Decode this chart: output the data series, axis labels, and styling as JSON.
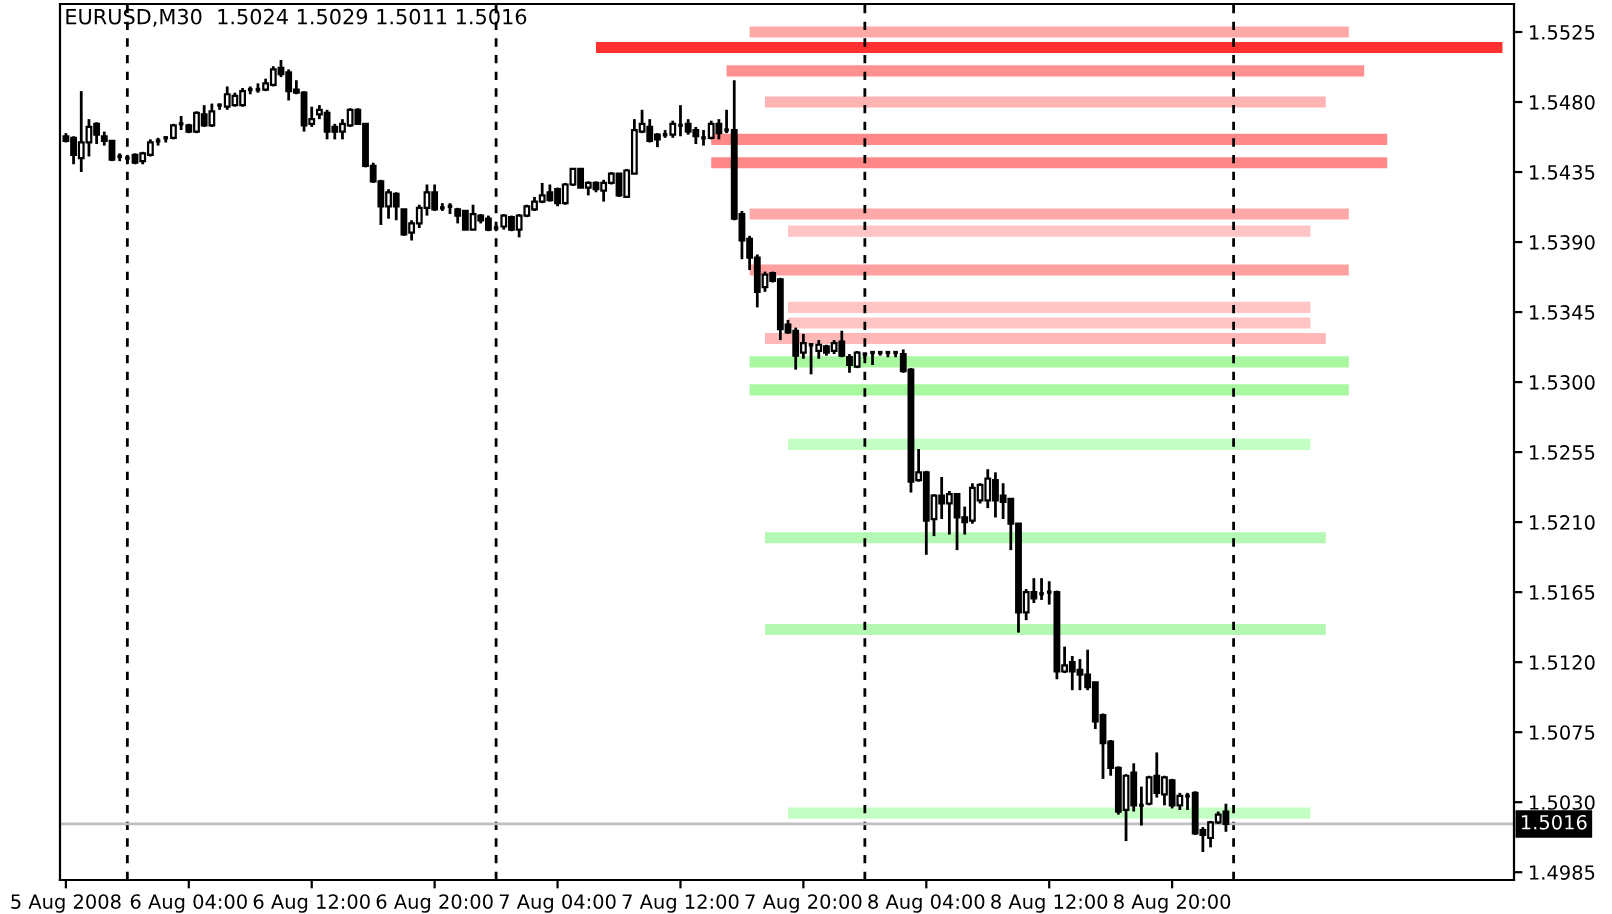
{
  "chart_data": {
    "type": "candlestick",
    "title": "EURUSD,M30  1.5024 1.5029 1.5011 1.5016",
    "color": "#000000",
    "x": [
      "2008-08-05T20:00",
      "2008-08-05T20:30",
      "2008-08-05T21:00",
      "2008-08-05T21:30",
      "2008-08-05T22:00",
      "2008-08-05T22:30",
      "2008-08-05T23:00",
      "2008-08-05T23:30",
      "2008-08-06T00:00",
      "2008-08-06T00:30",
      "2008-08-06T01:00",
      "2008-08-06T01:30",
      "2008-08-06T02:00",
      "2008-08-06T02:30",
      "2008-08-06T03:00",
      "2008-08-06T03:30",
      "2008-08-06T04:00",
      "2008-08-06T04:30",
      "2008-08-06T05:00",
      "2008-08-06T05:30",
      "2008-08-06T06:00",
      "2008-08-06T06:30",
      "2008-08-06T07:00",
      "2008-08-06T07:30",
      "2008-08-06T08:00",
      "2008-08-06T08:30",
      "2008-08-06T09:00",
      "2008-08-06T09:30",
      "2008-08-06T10:00",
      "2008-08-06T10:30",
      "2008-08-06T11:00",
      "2008-08-06T11:30",
      "2008-08-06T12:00",
      "2008-08-06T12:30",
      "2008-08-06T13:00",
      "2008-08-06T13:30",
      "2008-08-06T14:00",
      "2008-08-06T14:30",
      "2008-08-06T15:00",
      "2008-08-06T15:30",
      "2008-08-06T16:00",
      "2008-08-06T16:30",
      "2008-08-06T17:00",
      "2008-08-06T17:30",
      "2008-08-06T18:00",
      "2008-08-06T18:30",
      "2008-08-06T19:00",
      "2008-08-06T19:30",
      "2008-08-06T20:00",
      "2008-08-06T20:30",
      "2008-08-06T21:00",
      "2008-08-06T21:30",
      "2008-08-06T22:00",
      "2008-08-06T22:30",
      "2008-08-06T23:00",
      "2008-08-06T23:30",
      "2008-08-07T00:00",
      "2008-08-07T00:30",
      "2008-08-07T01:00",
      "2008-08-07T01:30",
      "2008-08-07T02:00",
      "2008-08-07T02:30",
      "2008-08-07T03:00",
      "2008-08-07T03:30",
      "2008-08-07T04:00",
      "2008-08-07T04:30",
      "2008-08-07T05:00",
      "2008-08-07T05:30",
      "2008-08-07T06:00",
      "2008-08-07T06:30",
      "2008-08-07T07:00",
      "2008-08-07T07:30",
      "2008-08-07T08:00",
      "2008-08-07T08:30",
      "2008-08-07T09:00",
      "2008-08-07T09:30",
      "2008-08-07T10:00",
      "2008-08-07T10:30",
      "2008-08-07T11:00",
      "2008-08-07T11:30",
      "2008-08-07T12:00",
      "2008-08-07T12:30",
      "2008-08-07T13:00",
      "2008-08-07T13:30",
      "2008-08-07T14:00",
      "2008-08-07T14:30",
      "2008-08-07T15:00",
      "2008-08-07T15:30",
      "2008-08-07T16:00",
      "2008-08-07T16:30",
      "2008-08-07T17:00",
      "2008-08-07T17:30",
      "2008-08-07T18:00",
      "2008-08-07T18:30",
      "2008-08-07T19:00",
      "2008-08-07T19:30",
      "2008-08-07T20:00",
      "2008-08-07T20:30",
      "2008-08-07T21:00",
      "2008-08-07T21:30",
      "2008-08-07T22:00",
      "2008-08-07T22:30",
      "2008-08-07T23:00",
      "2008-08-07T23:30",
      "2008-08-08T00:00",
      "2008-08-08T00:30",
      "2008-08-08T01:00",
      "2008-08-08T01:30",
      "2008-08-08T02:00",
      "2008-08-08T02:30",
      "2008-08-08T03:00",
      "2008-08-08T03:30",
      "2008-08-08T04:00",
      "2008-08-08T04:30",
      "2008-08-08T05:00",
      "2008-08-08T05:30",
      "2008-08-08T06:00",
      "2008-08-08T06:30",
      "2008-08-08T07:00",
      "2008-08-08T07:30",
      "2008-08-08T08:00",
      "2008-08-08T08:30",
      "2008-08-08T09:00",
      "2008-08-08T09:30",
      "2008-08-08T10:00",
      "2008-08-08T10:30",
      "2008-08-08T11:00",
      "2008-08-08T11:30",
      "2008-08-08T12:00",
      "2008-08-08T12:30",
      "2008-08-08T13:00",
      "2008-08-08T13:30",
      "2008-08-08T14:00",
      "2008-08-08T14:30",
      "2008-08-08T15:00",
      "2008-08-08T15:30",
      "2008-08-08T16:00",
      "2008-08-08T16:30",
      "2008-08-08T17:00",
      "2008-08-08T17:30",
      "2008-08-08T18:00",
      "2008-08-08T18:30",
      "2008-08-08T19:00",
      "2008-08-08T19:30",
      "2008-08-08T20:00",
      "2008-08-08T20:30",
      "2008-08-08T21:00",
      "2008-08-08T21:30",
      "2008-08-08T22:00",
      "2008-08-08T22:30",
      "2008-08-08T23:00",
      "2008-08-08T23:30"
    ],
    "ohlc": [
      [
        1.5458,
        1.546,
        1.5454,
        1.5455
      ],
      [
        1.5457,
        1.5458,
        1.544,
        1.5446
      ],
      [
        1.5444,
        1.5487,
        1.5435,
        1.5454
      ],
      [
        1.5454,
        1.5469,
        1.5445,
        1.5464
      ],
      [
        1.5466,
        1.5467,
        1.5453,
        1.5459
      ],
      [
        1.5458,
        1.5461,
        1.5452,
        1.5455
      ],
      [
        1.5455,
        1.5455,
        1.5442,
        1.5443
      ],
      [
        1.5445,
        1.5447,
        1.5442,
        1.5445
      ],
      [
        1.5444,
        1.5446,
        1.544,
        1.5444
      ],
      [
        1.5446,
        1.5447,
        1.544,
        1.5441
      ],
      [
        1.5442,
        1.5448,
        1.544,
        1.5447
      ],
      [
        1.5446,
        1.5456,
        1.5445,
        1.5454
      ],
      [
        1.5455,
        1.5457,
        1.5452,
        1.5455
      ],
      [
        1.5457,
        1.5458,
        1.5454,
        1.5457
      ],
      [
        1.5457,
        1.5466,
        1.5456,
        1.5465
      ],
      [
        1.5466,
        1.5471,
        1.5462,
        1.5466
      ],
      [
        1.5465,
        1.5466,
        1.546,
        1.5461
      ],
      [
        1.5461,
        1.5474,
        1.546,
        1.5473
      ],
      [
        1.5472,
        1.5478,
        1.5464,
        1.5465
      ],
      [
        1.5465,
        1.5479,
        1.5464,
        1.5474
      ],
      [
        1.5478,
        1.5479,
        1.5475,
        1.5478
      ],
      [
        1.5477,
        1.549,
        1.5475,
        1.5485
      ],
      [
        1.5478,
        1.5486,
        1.5477,
        1.5484
      ],
      [
        1.5478,
        1.5489,
        1.5477,
        1.5487
      ],
      [
        1.5488,
        1.549,
        1.5485,
        1.5488
      ],
      [
        1.5488,
        1.5492,
        1.5486,
        1.5488
      ],
      [
        1.5488,
        1.5495,
        1.5487,
        1.5492
      ],
      [
        1.5491,
        1.5503,
        1.549,
        1.5501
      ],
      [
        1.5502,
        1.5507,
        1.5496,
        1.5498
      ],
      [
        1.5499,
        1.5501,
        1.5481,
        1.5487
      ],
      [
        1.5488,
        1.5494,
        1.5485,
        1.5486
      ],
      [
        1.5486,
        1.5487,
        1.5461,
        1.5465
      ],
      [
        1.5466,
        1.5477,
        1.5464,
        1.5469
      ],
      [
        1.5472,
        1.5478,
        1.5469,
        1.5475
      ],
      [
        1.5473,
        1.5475,
        1.5456,
        1.5461
      ],
      [
        1.5464,
        1.5466,
        1.5456,
        1.5461
      ],
      [
        1.5461,
        1.5469,
        1.5456,
        1.5466
      ],
      [
        1.5465,
        1.5476,
        1.5464,
        1.5475
      ],
      [
        1.5475,
        1.5476,
        1.5466,
        1.5466
      ],
      [
        1.5466,
        1.5466,
        1.5438,
        1.5439
      ],
      [
        1.5439,
        1.5441,
        1.5428,
        1.5429
      ],
      [
        1.5429,
        1.543,
        1.5401,
        1.5413
      ],
      [
        1.5413,
        1.5424,
        1.5405,
        1.5422
      ],
      [
        1.5421,
        1.5422,
        1.5404,
        1.5413
      ],
      [
        1.5411,
        1.5411,
        1.5394,
        1.5395
      ],
      [
        1.5396,
        1.5404,
        1.5391,
        1.5402
      ],
      [
        1.5402,
        1.5414,
        1.5399,
        1.5412
      ],
      [
        1.5412,
        1.5427,
        1.5407,
        1.5422
      ],
      [
        1.5422,
        1.5427,
        1.541,
        1.5411
      ],
      [
        1.5412,
        1.5415,
        1.541,
        1.5412
      ],
      [
        1.5413,
        1.5415,
        1.5408,
        1.5413
      ],
      [
        1.5411,
        1.5412,
        1.5402,
        1.5407
      ],
      [
        1.541,
        1.541,
        1.5398,
        1.5398
      ],
      [
        1.5398,
        1.5414,
        1.5398,
        1.5408
      ],
      [
        1.5407,
        1.5408,
        1.5402,
        1.5404
      ],
      [
        1.5405,
        1.5407,
        1.5397,
        1.5398
      ],
      [
        1.5399,
        1.5401,
        1.5397,
        1.5399
      ],
      [
        1.54,
        1.5408,
        1.5398,
        1.5407
      ],
      [
        1.5406,
        1.5407,
        1.5397,
        1.5398
      ],
      [
        1.5398,
        1.5408,
        1.5393,
        1.5407
      ],
      [
        1.5407,
        1.5414,
        1.5406,
        1.5413
      ],
      [
        1.5411,
        1.5419,
        1.541,
        1.5416
      ],
      [
        1.5416,
        1.5428,
        1.5415,
        1.542
      ],
      [
        1.5422,
        1.5427,
        1.5416,
        1.5417
      ],
      [
        1.5424,
        1.5425,
        1.5413,
        1.5415
      ],
      [
        1.5415,
        1.5428,
        1.5414,
        1.5427
      ],
      [
        1.5427,
        1.5437,
        1.5426,
        1.5437
      ],
      [
        1.5437,
        1.5437,
        1.5425,
        1.5425
      ],
      [
        1.5425,
        1.5429,
        1.542,
        1.5428
      ],
      [
        1.5428,
        1.5429,
        1.5422,
        1.5424
      ],
      [
        1.5423,
        1.543,
        1.5416,
        1.5428
      ],
      [
        1.5428,
        1.5435,
        1.5427,
        1.5434
      ],
      [
        1.5434,
        1.5434,
        1.5419,
        1.542
      ],
      [
        1.5419,
        1.5437,
        1.5419,
        1.5436
      ],
      [
        1.5434,
        1.5469,
        1.5434,
        1.5462
      ],
      [
        1.5461,
        1.5475,
        1.546,
        1.5466
      ],
      [
        1.5464,
        1.5469,
        1.5454,
        1.5455
      ],
      [
        1.5459,
        1.546,
        1.5451,
        1.5456
      ],
      [
        1.5459,
        1.5462,
        1.5457,
        1.5459
      ],
      [
        1.5459,
        1.5468,
        1.5457,
        1.5466
      ],
      [
        1.5465,
        1.5478,
        1.5458,
        1.5465
      ],
      [
        1.5466,
        1.5469,
        1.5459,
        1.5461
      ],
      [
        1.5462,
        1.5464,
        1.5453,
        1.5458
      ],
      [
        1.5457,
        1.5462,
        1.5452,
        1.5457
      ],
      [
        1.5457,
        1.5468,
        1.5456,
        1.5466
      ],
      [
        1.5466,
        1.5469,
        1.5456,
        1.546
      ],
      [
        1.5462,
        1.5475,
        1.546,
        1.5462
      ],
      [
        1.5462,
        1.5494,
        1.5404,
        1.5405
      ],
      [
        1.5408,
        1.541,
        1.5379,
        1.5391
      ],
      [
        1.5392,
        1.5394,
        1.5372,
        1.538
      ],
      [
        1.538,
        1.5382,
        1.5348,
        1.5358
      ],
      [
        1.5361,
        1.5371,
        1.5358,
        1.5369
      ],
      [
        1.537,
        1.5371,
        1.5364,
        1.5365
      ],
      [
        1.5366,
        1.5367,
        1.5327,
        1.5334
      ],
      [
        1.5337,
        1.534,
        1.5331,
        1.5332
      ],
      [
        1.5333,
        1.5335,
        1.5308,
        1.5317
      ],
      [
        1.5319,
        1.5331,
        1.5315,
        1.5325
      ],
      [
        1.5324,
        1.5325,
        1.5305,
        1.5324
      ],
      [
        1.532,
        1.5327,
        1.5315,
        1.5324
      ],
      [
        1.5323,
        1.5324,
        1.5317,
        1.5319
      ],
      [
        1.532,
        1.5327,
        1.5318,
        1.5325
      ],
      [
        1.5326,
        1.5333,
        1.5316,
        1.5317
      ],
      [
        1.5316,
        1.5318,
        1.5306,
        1.5311
      ],
      [
        1.531,
        1.532,
        1.5309,
        1.5319
      ],
      [
        1.5318,
        1.5319,
        1.5315,
        1.5318
      ],
      [
        1.5319,
        1.532,
        1.5311,
        1.5319
      ],
      [
        1.5319,
        1.532,
        1.5317,
        1.5319
      ],
      [
        1.5319,
        1.532,
        1.5316,
        1.5319
      ],
      [
        1.5319,
        1.532,
        1.5316,
        1.5319
      ],
      [
        1.5318,
        1.5321,
        1.5306,
        1.5307
      ],
      [
        1.5308,
        1.5309,
        1.5229,
        1.5236
      ],
      [
        1.5237,
        1.5257,
        1.5236,
        1.5242
      ],
      [
        1.5242,
        1.5243,
        1.5189,
        1.5211
      ],
      [
        1.5212,
        1.5228,
        1.5201,
        1.5227
      ],
      [
        1.5227,
        1.5239,
        1.5212,
        1.5222
      ],
      [
        1.5222,
        1.523,
        1.5202,
        1.5228
      ],
      [
        1.5228,
        1.5228,
        1.5192,
        1.5213
      ],
      [
        1.5213,
        1.522,
        1.5202,
        1.521
      ],
      [
        1.5211,
        1.5235,
        1.5209,
        1.5232
      ],
      [
        1.5224,
        1.5235,
        1.5222,
        1.5234
      ],
      [
        1.5224,
        1.5244,
        1.5219,
        1.5238
      ],
      [
        1.5237,
        1.5242,
        1.5213,
        1.5224
      ],
      [
        1.5227,
        1.5235,
        1.5212,
        1.5223
      ],
      [
        1.5225,
        1.5225,
        1.5192,
        1.5209
      ],
      [
        1.5209,
        1.5209,
        1.5139,
        1.5152
      ],
      [
        1.5152,
        1.5167,
        1.5147,
        1.5165
      ],
      [
        1.5165,
        1.5174,
        1.5158,
        1.5161
      ],
      [
        1.5164,
        1.5174,
        1.516,
        1.5164
      ],
      [
        1.5165,
        1.5172,
        1.5157,
        1.5165
      ],
      [
        1.5165,
        1.5166,
        1.5109,
        1.5114
      ],
      [
        1.5114,
        1.513,
        1.5113,
        1.5118
      ],
      [
        1.512,
        1.5124,
        1.5102,
        1.5114
      ],
      [
        1.5115,
        1.5122,
        1.5102,
        1.5112
      ],
      [
        1.5112,
        1.5128,
        1.5102,
        1.5104
      ],
      [
        1.5107,
        1.5107,
        1.5077,
        1.5082
      ],
      [
        1.5086,
        1.5087,
        1.5045,
        1.5068
      ],
      [
        1.5069,
        1.507,
        1.5047,
        1.5052
      ],
      [
        1.5052,
        1.5053,
        1.5022,
        1.5024
      ],
      [
        1.5025,
        1.5048,
        1.5005,
        1.5047
      ],
      [
        1.5049,
        1.5055,
        1.5024,
        1.5028
      ],
      [
        1.5028,
        1.504,
        1.5015,
        1.5028
      ],
      [
        1.5029,
        1.5047,
        1.5028,
        1.5046
      ],
      [
        1.5047,
        1.5062,
        1.5033,
        1.5036
      ],
      [
        1.5035,
        1.5047,
        1.5028,
        1.5046
      ],
      [
        1.5044,
        1.5045,
        1.5026,
        1.5028
      ],
      [
        1.5028,
        1.5036,
        1.5025,
        1.5034
      ],
      [
        1.5034,
        1.5036,
        1.5025,
        1.5034
      ],
      [
        1.5036,
        1.5037,
        1.5009,
        1.501
      ],
      [
        1.5012,
        1.5014,
        1.4998,
        1.5009
      ],
      [
        1.5007,
        1.5018,
        1.5001,
        1.5017
      ],
      [
        1.5017,
        1.5024,
        1.5016,
        1.5022
      ],
      [
        1.5024,
        1.5029,
        1.5011,
        1.5016
      ]
    ],
    "series": [
      {
        "type": "line",
        "color": "#ffa8a8",
        "x": [
          "2008-08-07T16:30",
          "2008-08-09T07:30"
        ],
        "values": [
          1.5525,
          1.5525
        ]
      },
      {
        "type": "line",
        "color": "#ff3030",
        "x": [
          "2008-08-07T06:30",
          "2008-08-09T17:30"
        ],
        "values": [
          1.5515,
          1.5515
        ]
      },
      {
        "type": "line",
        "color": "#ff9090",
        "x": [
          "2008-08-07T15:00",
          "2008-08-09T08:30"
        ],
        "values": [
          1.55,
          1.55
        ]
      },
      {
        "type": "line",
        "color": "#ffb4b4",
        "x": [
          "2008-08-07T17:30",
          "2008-08-09T06:00"
        ],
        "values": [
          1.548,
          1.548
        ]
      },
      {
        "type": "line",
        "color": "#ff8888",
        "x": [
          "2008-08-07T14:00",
          "2008-08-09T10:00"
        ],
        "values": [
          1.5456,
          1.5456
        ]
      },
      {
        "type": "line",
        "color": "#ff8888",
        "x": [
          "2008-08-07T14:00",
          "2008-08-09T10:00"
        ],
        "values": [
          1.5441,
          1.5441
        ]
      },
      {
        "type": "line",
        "color": "#ffa8a8",
        "x": [
          "2008-08-07T16:30",
          "2008-08-09T07:30"
        ],
        "values": [
          1.5408,
          1.5408
        ]
      },
      {
        "type": "line",
        "color": "#ffc4c4",
        "x": [
          "2008-08-07T19:00",
          "2008-08-09T05:00"
        ],
        "values": [
          1.5397,
          1.5397
        ]
      },
      {
        "type": "line",
        "color": "#ffa0a0",
        "x": [
          "2008-08-07T16:30",
          "2008-08-09T07:30"
        ],
        "values": [
          1.5372,
          1.5372
        ]
      },
      {
        "type": "line",
        "color": "#ffc4c4",
        "x": [
          "2008-08-07T19:00",
          "2008-08-09T05:00"
        ],
        "values": [
          1.5348,
          1.5348
        ]
      },
      {
        "type": "line",
        "color": "#ffc4c4",
        "x": [
          "2008-08-07T19:00",
          "2008-08-09T05:00"
        ],
        "values": [
          1.5338,
          1.5338
        ]
      },
      {
        "type": "line",
        "color": "#ffb8b8",
        "x": [
          "2008-08-07T17:30",
          "2008-08-09T06:00"
        ],
        "values": [
          1.5328,
          1.5328
        ]
      },
      {
        "type": "line",
        "color": "#a8f8a0",
        "x": [
          "2008-08-07T16:30",
          "2008-08-09T07:30"
        ],
        "values": [
          1.5313,
          1.5313
        ]
      },
      {
        "type": "line",
        "color": "#a8f8a0",
        "x": [
          "2008-08-07T16:30",
          "2008-08-09T07:30"
        ],
        "values": [
          1.5295,
          1.5295
        ]
      },
      {
        "type": "line",
        "color": "#c4ffc4",
        "x": [
          "2008-08-07T19:00",
          "2008-08-09T05:00"
        ],
        "values": [
          1.526,
          1.526
        ]
      },
      {
        "type": "line",
        "color": "#b4f8b4",
        "x": [
          "2008-08-07T17:30",
          "2008-08-09T06:00"
        ],
        "values": [
          1.52,
          1.52
        ]
      },
      {
        "type": "line",
        "color": "#b4f8b4",
        "x": [
          "2008-08-07T17:30",
          "2008-08-09T06:00"
        ],
        "values": [
          1.5141,
          1.5141
        ]
      },
      {
        "type": "line",
        "color": "#c4ffc4",
        "x": [
          "2008-08-07T19:00",
          "2008-08-09T05:00"
        ],
        "values": [
          1.5023,
          1.5023
        ]
      }
    ],
    "ref_lines": [
      {
        "axis": "x",
        "value": "2008-08-06T00:00",
        "color": "#000000",
        "line_style": "dashed"
      },
      {
        "axis": "x",
        "value": "2008-08-07T00:00",
        "color": "#000000",
        "line_style": "dashed"
      },
      {
        "axis": "x",
        "value": "2008-08-08T00:00",
        "color": "#000000",
        "line_style": "dashed"
      },
      {
        "axis": "x",
        "value": "2008-08-09T00:00",
        "color": "#000000",
        "line_style": "dashed"
      },
      {
        "axis": "y",
        "value": 1.5016,
        "label": "1.5016",
        "color": "#c0c0c0",
        "line_style": "solid"
      }
    ],
    "xlim": [
      "2008-08-05T19:37",
      "2008-08-09T18:15"
    ],
    "xticks": [
      {
        "value": "2008-08-05T20:00",
        "label": "5 Aug 2008"
      },
      {
        "value": "2008-08-06T04:00",
        "label": "6 Aug 04:00"
      },
      {
        "value": "2008-08-06T12:00",
        "label": "6 Aug 12:00"
      },
      {
        "value": "2008-08-06T20:00",
        "label": "6 Aug 20:00"
      },
      {
        "value": "2008-08-07T04:00",
        "label": "7 Aug 04:00"
      },
      {
        "value": "2008-08-07T12:00",
        "label": "7 Aug 12:00"
      },
      {
        "value": "2008-08-07T20:00",
        "label": "7 Aug 20:00"
      },
      {
        "value": "2008-08-08T04:00",
        "label": "8 Aug 04:00"
      },
      {
        "value": "2008-08-08T12:00",
        "label": "8 Aug 12:00"
      },
      {
        "value": "2008-08-08T20:00",
        "label": "8 Aug 20:00"
      }
    ],
    "ylim": [
      1.498,
      1.5543
    ],
    "yticks": [
      1.4985,
      {
        "value": 1.503,
        "label": "1.5030"
      },
      1.5075,
      {
        "value": 1.512,
        "label": "1.5120"
      },
      1.5165,
      {
        "value": 1.521,
        "label": "1.5210"
      },
      1.5255,
      {
        "value": 1.53,
        "label": "1.5300"
      },
      1.5345,
      {
        "value": 1.539,
        "label": "1.5390"
      },
      1.5435,
      {
        "value": 1.548,
        "label": "1.5480"
      },
      1.5525
    ],
    "grid": false,
    "legend": false
  }
}
